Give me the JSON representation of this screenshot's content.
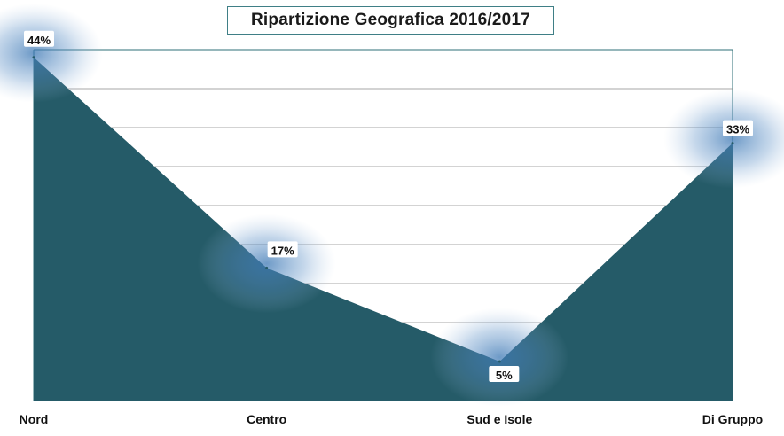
{
  "chart_data": {
    "type": "area",
    "title": "Ripartizione Geografica 2016/2017",
    "categories": [
      "Nord",
      "Centro",
      "Sud e Isole",
      "Di Gruppo"
    ],
    "values": [
      44,
      17,
      5,
      33
    ],
    "data_labels": [
      "44%",
      "17%",
      "5%",
      "33%"
    ],
    "ylim": [
      0,
      45
    ],
    "grid": true,
    "legend": "none",
    "colors": {
      "area": "#255b68",
      "glow": "#3d78b4",
      "grid": "#8a8a8a",
      "axis": "#2d6f77"
    }
  }
}
